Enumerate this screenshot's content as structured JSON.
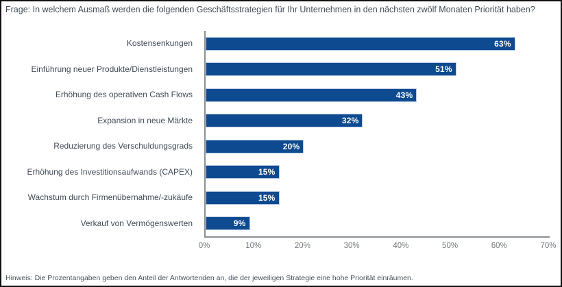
{
  "header": {
    "question": "Frage: In welchem Ausmaß werden die folgenden Geschäftsstrategien für Ihr Unternehmen in den nächsten zwölf Monaten Priorität haben?"
  },
  "footer": {
    "note": "Hinweis: Die Prozentangaben geben den Anteil der Antwortenden an, die der jeweiligen Strategie eine hohe Priorität einräumen."
  },
  "colors": {
    "bar": "#0d4a8f",
    "bar_outline": "#bac9e2",
    "bar_value_text": "#ffffff",
    "label_text": "#414b57",
    "tick_text": "#70787f",
    "axis_line": "#8b9094",
    "frame_border": "#111111"
  },
  "chart_data": {
    "type": "bar",
    "orientation": "horizontal",
    "title": "",
    "xlabel": "",
    "ylabel": "",
    "categories": [
      "Kostensenkungen",
      "Einführung neuer Produkte/Dienstleistungen",
      "Erhöhung des operativen Cash Flows",
      "Expansion in neue Märkte",
      "Reduzierung des Verschuldungsgrads",
      "Erhöhung des Investitionsaufwands (CAPEX)",
      "Wachstum durch Firmenübernahme/-zukäufe",
      "Verkauf von Vermögenswerten"
    ],
    "values": [
      63,
      51,
      43,
      32,
      20,
      15,
      15,
      9
    ],
    "value_labels": [
      "63%",
      "51%",
      "43%",
      "32%",
      "20%",
      "15%",
      "15%",
      "9%"
    ],
    "x_ticks": [
      "0%",
      "10%",
      "20%",
      "30%",
      "40%",
      "50%",
      "60%",
      "70%"
    ],
    "xlim": [
      0,
      70
    ],
    "grid": false,
    "legend": false,
    "bar_color": "#0d4a8f"
  }
}
